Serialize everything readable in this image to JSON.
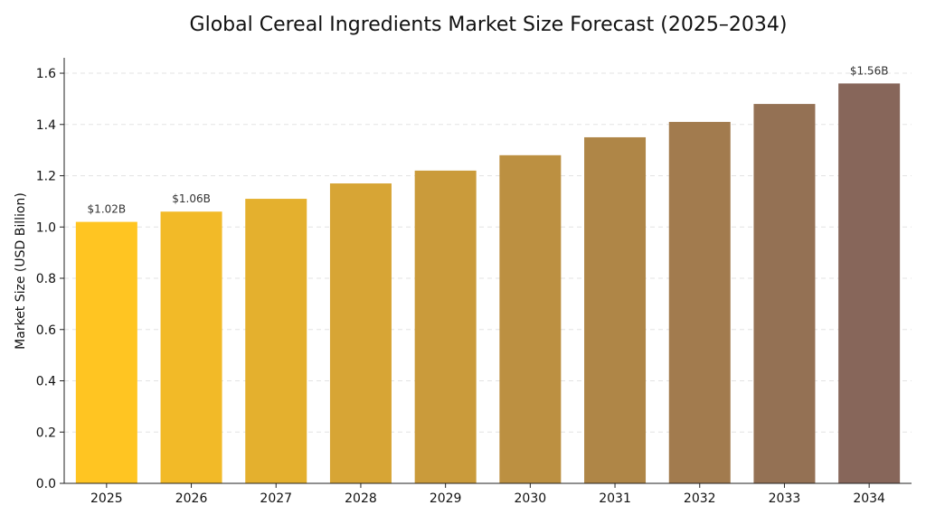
{
  "chart_data": {
    "type": "bar",
    "title": "Global Cereal Ingredients Market Size Forecast (2025–2034)",
    "xlabel": "",
    "ylabel": "Market Size (USD Billion)",
    "categories": [
      "2025",
      "2026",
      "2027",
      "2028",
      "2029",
      "2030",
      "2031",
      "2032",
      "2033",
      "2034"
    ],
    "values": [
      1.02,
      1.06,
      1.11,
      1.17,
      1.22,
      1.28,
      1.35,
      1.41,
      1.48,
      1.56
    ],
    "data_labels": {
      "0": "$1.02B",
      "1": "$1.06B",
      "9": "$1.56B"
    },
    "ylim": [
      0,
      1.66
    ],
    "yticks": [
      "0.0",
      "0.2",
      "0.4",
      "0.6",
      "0.8",
      "1.0",
      "1.2",
      "1.4",
      "1.6"
    ],
    "grid": "horizontal dashed",
    "colors": {
      "start": "#FFC522",
      "end": "#87665A"
    }
  }
}
